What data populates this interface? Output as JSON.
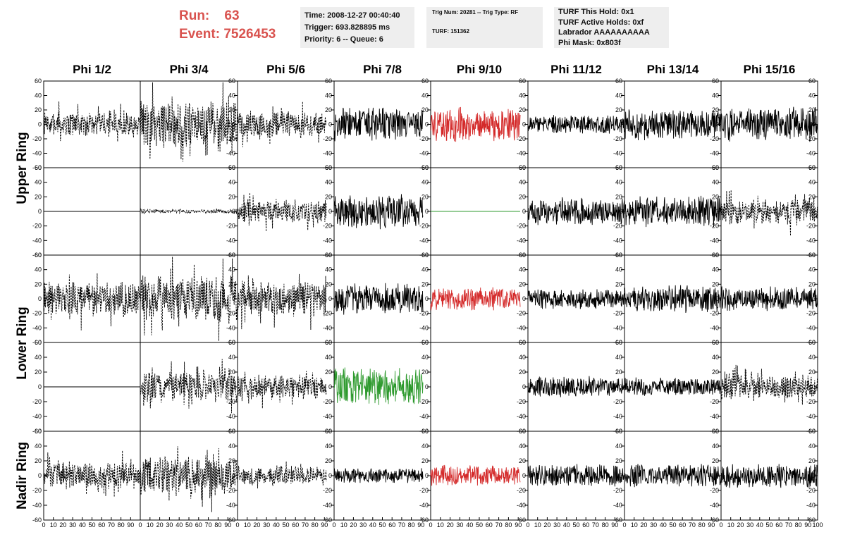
{
  "header": {
    "run_label": "Run:",
    "run_value": "63",
    "event_label": "Event:",
    "event_value": "7526453",
    "time": "Time: 2008-12-27 00:40:40",
    "trigger": "Trigger: 693.828895 ms",
    "priority": "Priority: 6 -- Queue: 6",
    "trig_num": "Trig Num: 20281 -- Trig Type: RF",
    "turf": "TURF: 151362",
    "turf_this_hold": "TURF This Hold: 0x1",
    "turf_active_holds": "TURF Active Holds: 0xf",
    "labrador": "Labrador AAAAAAAAAA",
    "phi_mask": "Phi Mask: 0x803f"
  },
  "colors": {
    "black": "#000000",
    "red": "#d42a2a",
    "green": "#2e9a2e"
  },
  "chart_data": {
    "type": "line",
    "title": "",
    "columns": [
      "Phi 1/2",
      "Phi 3/4",
      "Phi 5/6",
      "Phi 7/8",
      "Phi 9/10",
      "Phi 11/12",
      "Phi 13/14",
      "Phi 15/16"
    ],
    "ring_labels": [
      {
        "label": "Upper Ring",
        "rows": [
          0,
          1
        ]
      },
      {
        "label": "Lower Ring",
        "rows": [
          2,
          3
        ]
      },
      {
        "label": "Nadir Ring",
        "rows": [
          4
        ]
      }
    ],
    "ylim": [
      -60,
      60
    ],
    "xlim": [
      0,
      100
    ],
    "y_ticks": [
      -60,
      -40,
      -20,
      0,
      20,
      40,
      60
    ],
    "x_ticks": [
      0,
      10,
      20,
      30,
      40,
      50,
      60,
      70,
      80,
      90,
      100
    ],
    "x_tick_labels": [
      "0",
      "10",
      "20",
      "30",
      "40",
      "50",
      "60",
      "70",
      "80",
      "90",
      "100"
    ],
    "grid": false,
    "note_amplitudes_are_approximate": true,
    "panels": [
      [
        {
          "style": "dashed",
          "color": "black",
          "amp": 14,
          "x_end": 100
        },
        {
          "style": "dashed",
          "color": "black",
          "amp": 28,
          "x_end": 100
        },
        {
          "style": "dashed",
          "color": "black",
          "amp": 16,
          "x_end": 92
        },
        {
          "style": "solid",
          "color": "black",
          "amp": 20,
          "x_end": 92
        },
        {
          "style": "solid",
          "color": "red",
          "amp": 20,
          "x_end": 92
        },
        {
          "style": "solid",
          "color": "black",
          "amp": 11,
          "x_end": 100
        },
        {
          "style": "solid",
          "color": "black",
          "amp": 18,
          "x_end": 100
        },
        {
          "style": "solid",
          "color": "black",
          "amp": 20,
          "x_end": 100
        }
      ],
      [
        {
          "style": "flat",
          "color": "black",
          "amp": 0,
          "x_end": 100
        },
        {
          "style": "dashed",
          "color": "black",
          "amp": 2,
          "x_end": 100
        },
        {
          "style": "dashed",
          "color": "black",
          "amp": 14,
          "x_end": 92
        },
        {
          "style": "solid",
          "color": "black",
          "amp": 20,
          "x_end": 92
        },
        {
          "style": "flat",
          "color": "green",
          "amp": 0,
          "x_end": 92
        },
        {
          "style": "solid",
          "color": "black",
          "amp": 16,
          "x_end": 100
        },
        {
          "style": "solid",
          "color": "black",
          "amp": 18,
          "x_end": 100
        },
        {
          "style": "dashed",
          "color": "black",
          "amp": 15,
          "x_end": 100
        }
      ],
      [
        {
          "style": "dashed",
          "color": "black",
          "amp": 20,
          "x_end": 100
        },
        {
          "style": "dashed",
          "color": "black",
          "amp": 28,
          "x_end": 100
        },
        {
          "style": "dashed",
          "color": "black",
          "amp": 20,
          "x_end": 92
        },
        {
          "style": "solid",
          "color": "black",
          "amp": 18,
          "x_end": 92
        },
        {
          "style": "solid",
          "color": "red",
          "amp": 14,
          "x_end": 92
        },
        {
          "style": "solid",
          "color": "black",
          "amp": 12,
          "x_end": 100
        },
        {
          "style": "solid",
          "color": "black",
          "amp": 16,
          "x_end": 100
        },
        {
          "style": "solid",
          "color": "black",
          "amp": 14,
          "x_end": 100
        }
      ],
      [
        {
          "style": "flat",
          "color": "black",
          "amp": 0,
          "x_end": 100
        },
        {
          "style": "dashed",
          "color": "black",
          "amp": 18,
          "x_end": 100
        },
        {
          "style": "dashed",
          "color": "black",
          "amp": 14,
          "x_end": 92
        },
        {
          "style": "solid",
          "color": "green",
          "amp": 22,
          "x_end": 92
        },
        {
          "style": "none",
          "color": "black",
          "amp": 0,
          "x_end": 92
        },
        {
          "style": "solid",
          "color": "black",
          "amp": 12,
          "x_end": 100
        },
        {
          "style": "solid",
          "color": "black",
          "amp": 11,
          "x_end": 100
        },
        {
          "style": "dashed",
          "color": "black",
          "amp": 14,
          "x_end": 100
        }
      ],
      [
        {
          "style": "dashed",
          "color": "black",
          "amp": 16,
          "x_end": 100
        },
        {
          "style": "dashed",
          "color": "black",
          "amp": 22,
          "x_end": 100
        },
        {
          "style": "dashed",
          "color": "black",
          "amp": 10,
          "x_end": 92
        },
        {
          "style": "solid",
          "color": "black",
          "amp": 9,
          "x_end": 92
        },
        {
          "style": "solid",
          "color": "red",
          "amp": 12,
          "x_end": 92
        },
        {
          "style": "solid",
          "color": "black",
          "amp": 13,
          "x_end": 100
        },
        {
          "style": "solid",
          "color": "black",
          "amp": 13,
          "x_end": 100
        },
        {
          "style": "solid",
          "color": "black",
          "amp": 14,
          "x_end": 100
        }
      ]
    ]
  }
}
